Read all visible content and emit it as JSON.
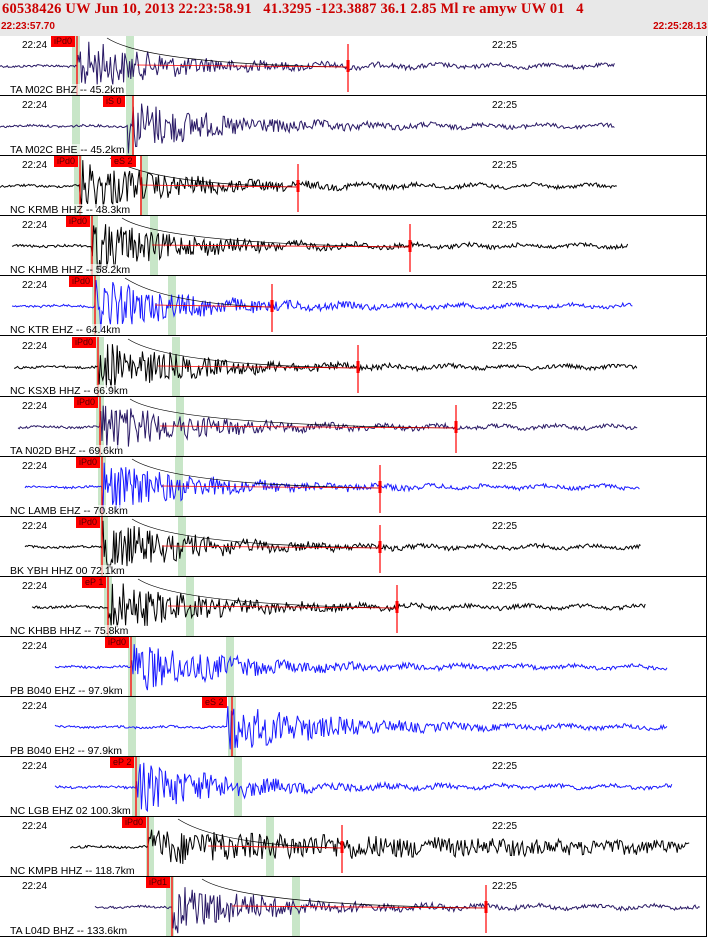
{
  "header": {
    "title": "60538426 UW Jun 10, 2013 22:23:58.91   41.3295 -123.3887 36.1 2.85 Ml re amyw UW 01   4",
    "start_time": "22:23:57.70",
    "end_time": "22:25:28.13"
  },
  "colors": {
    "header_text": "#cc0000",
    "pick": "#ff0000",
    "window": "#c8e6c8",
    "fit": "#ff0000"
  },
  "traces": [
    {
      "channel": "TA M02C BHZ -- 45.2km",
      "time1": "22:24",
      "time2": "22:25",
      "color": "#2a1a66",
      "pick1": "iPd0",
      "pick2": ""
    },
    {
      "channel": "TA M02C BHE -- 45.2km",
      "time1": "22:24",
      "time2": "22:25",
      "color": "#2a1a66",
      "pick1": "",
      "pick2": "iS 0"
    },
    {
      "channel": "NC KRMB HHZ -- 48.3km",
      "time1": "22:24",
      "time2": "22:25",
      "color": "#000000",
      "pick1": "iPd0",
      "pick2": "eS 2"
    },
    {
      "channel": "NC KHMB HHZ -- 58.2km",
      "time1": "22:24",
      "time2": "22:25",
      "color": "#000000",
      "pick1": "iPd0",
      "pick2": ""
    },
    {
      "channel": "NC KTR EHZ -- 64.4km",
      "time1": "22:24",
      "time2": "22:25",
      "color": "#1a1aff",
      "pick1": "iPd0",
      "pick2": ""
    },
    {
      "channel": "NC KSXB HHZ -- 66.9km",
      "time1": "22:24",
      "time2": "22:25",
      "color": "#000000",
      "pick1": "iPd0",
      "pick2": ""
    },
    {
      "channel": "TA N02D BHZ -- 69.6km",
      "time1": "22:24",
      "time2": "22:25",
      "color": "#2a1a66",
      "pick1": "iPd0",
      "pick2": ""
    },
    {
      "channel": "NC LAMB EHZ -- 70.8km",
      "time1": "22:24",
      "time2": "22:25",
      "color": "#1a1aff",
      "pick1": "iPd0",
      "pick2": ""
    },
    {
      "channel": "BK YBH HHZ 00 72.1km",
      "time1": "22:24",
      "time2": "22:25",
      "color": "#000000",
      "pick1": "iPd0",
      "pick2": ""
    },
    {
      "channel": "NC KHBB HHZ -- 75.8km",
      "time1": "22:24",
      "time2": "22:25",
      "color": "#000000",
      "pick1": "eP 1",
      "pick2": ""
    },
    {
      "channel": "PB B040 EHZ -- 97.9km",
      "time1": "22:24",
      "time2": "22:25",
      "color": "#1a1aff",
      "pick1": "iPd0",
      "pick2": ""
    },
    {
      "channel": "PB B040 EH2 -- 97.9km",
      "time1": "22:24",
      "time2": "22:25",
      "color": "#1a1aff",
      "pick1": "",
      "pick2": "eS 2"
    },
    {
      "channel": "NC LGB EHZ 02 100.3km",
      "time1": "22:24",
      "time2": "22:25",
      "color": "#1a1aff",
      "pick1": "eP 2",
      "pick2": ""
    },
    {
      "channel": "NC KMPB HHZ -- 118.7km",
      "time1": "22:24",
      "time2": "22:25",
      "color": "#000000",
      "pick1": "iPd0",
      "pick2": ""
    },
    {
      "channel": "TA L04D BHZ -- 133.6km",
      "time1": "22:24",
      "time2": "22:25",
      "color": "#2a1a66",
      "pick1": "iPd1",
      "pick2": ""
    }
  ]
}
